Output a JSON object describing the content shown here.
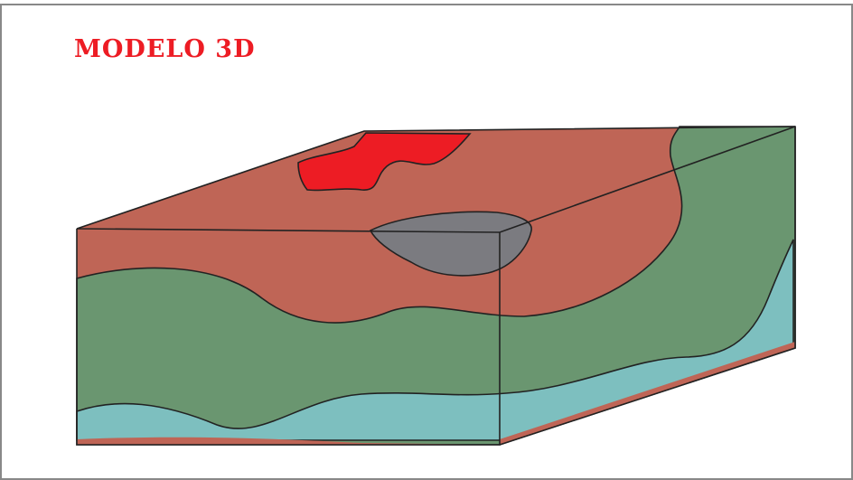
{
  "title": "MODELO 3D"
}
